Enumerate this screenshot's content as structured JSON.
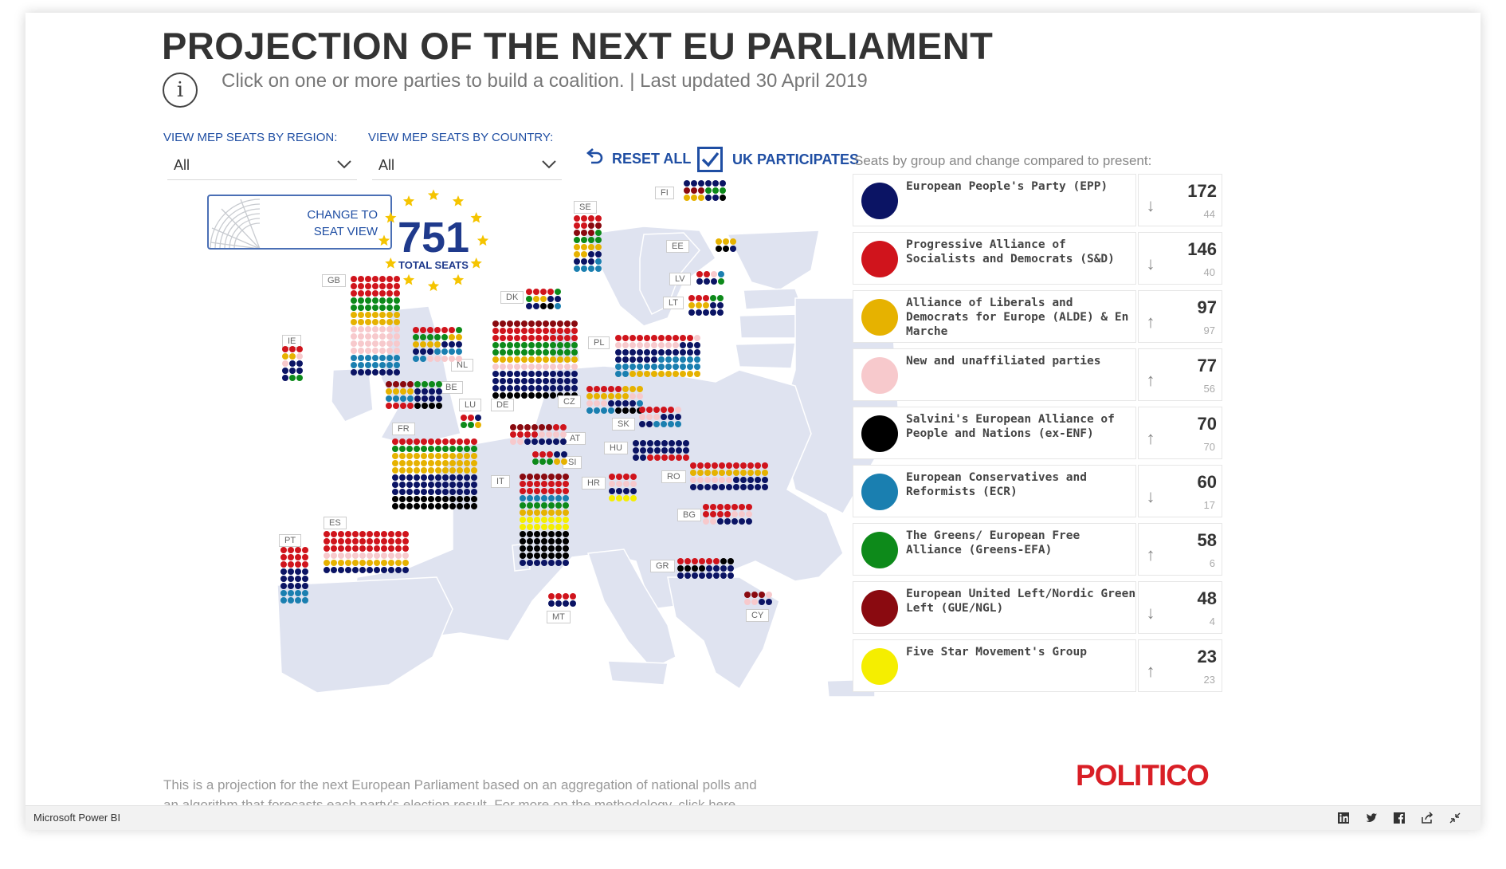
{
  "title": "PROJECTION OF THE NEXT EU PARLIAMENT",
  "subtitle": "Click on one or more parties to build a coalition. | Last updated 30 April 2019",
  "filters": {
    "region": {
      "label": "VIEW MEP SEATS BY REGION:",
      "value": "All"
    },
    "country": {
      "label": "VIEW MEP SEATS BY COUNTRY:",
      "value": "All"
    }
  },
  "reset_label": "RESET ALL",
  "uk_participates": {
    "label": "UK PARTICIPATES",
    "checked": true
  },
  "seat_view_button": {
    "line1": "CHANGE TO",
    "line2": "SEAT VIEW"
  },
  "total": {
    "value": "751",
    "label": "TOTAL SEATS"
  },
  "legend_heading": "Seats by group and change compared to present:",
  "parties": [
    {
      "name": "European People's Party (EPP)",
      "color": "#0b1464",
      "seats": "172",
      "change": "44",
      "direction": "down"
    },
    {
      "name": "Progressive Alliance of Socialists and Democrats (S&D)",
      "color": "#d0141c",
      "seats": "146",
      "change": "40",
      "direction": "down"
    },
    {
      "name": "Alliance of Liberals and Democrats for Europe (ALDE) & En Marche",
      "color": "#e6b200",
      "seats": "97",
      "change": "97",
      "direction": "up"
    },
    {
      "name": "New and unaffiliated parties",
      "color": "#f7c9cc",
      "seats": "77",
      "change": "56",
      "direction": "up"
    },
    {
      "name": "Salvini's European Alliance of People and Nations (ex-ENF)",
      "color": "#000000",
      "seats": "70",
      "change": "70",
      "direction": "up"
    },
    {
      "name": "European Conservatives and Reformists (ECR)",
      "color": "#1a7fb0",
      "seats": "60",
      "change": "17",
      "direction": "down"
    },
    {
      "name": "The Greens/ European Free Alliance (Greens-EFA)",
      "color": "#0d8a1a",
      "seats": "58",
      "change": "6",
      "direction": "up"
    },
    {
      "name": "European United Left/Nordic Green Left (GUE/NGL)",
      "color": "#8a0a10",
      "seats": "48",
      "change": "4",
      "direction": "down"
    },
    {
      "name": "Five Star Movement's Group",
      "color": "#f5ee00",
      "seats": "23",
      "change": "23",
      "direction": "up"
    }
  ],
  "countries": [
    "FI",
    "SE",
    "EE",
    "LV",
    "LT",
    "DK",
    "GB",
    "IE",
    "NL",
    "BE",
    "LU",
    "DE",
    "PL",
    "CZ",
    "SK",
    "FR",
    "AT",
    "HU",
    "SI",
    "IT",
    "HR",
    "RO",
    "BG",
    "ES",
    "PT",
    "GR",
    "MT",
    "CY"
  ],
  "footnote_line1": "This is a projection for the next European Parliament based on an aggregation of national polls and",
  "footnote_line2": "an algorithm that forecasts each party's election result. For more on the methodology, click here.",
  "logo": "POLITICO",
  "footer": {
    "app_name": "Microsoft Power BI"
  }
}
